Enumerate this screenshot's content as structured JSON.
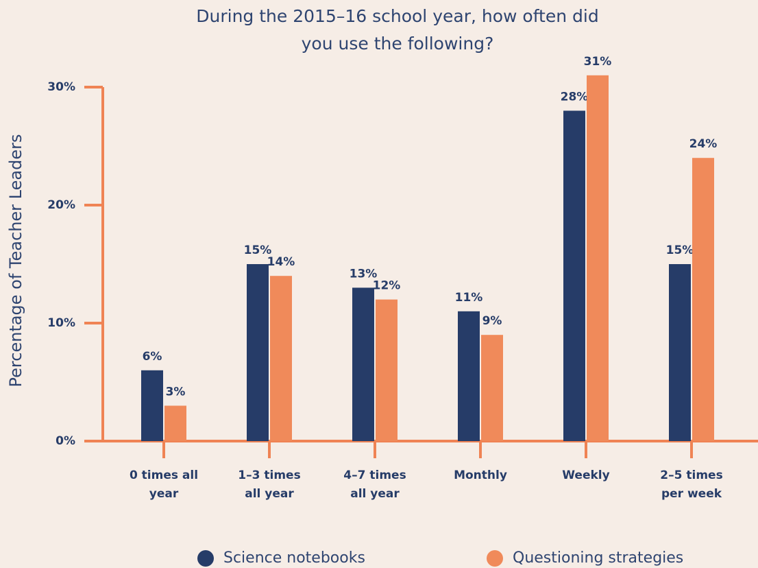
{
  "chart_data": {
    "type": "bar",
    "title": "During the 2015–16 school year, how often did you use the following?",
    "y_label": "Percentage of Teacher Leaders",
    "categories": [
      "0 times all year",
      "1–3 times all year",
      "4–7 times all year",
      "Monthly",
      "Weekly",
      "2–5 times per week"
    ],
    "series": [
      {
        "name": "Science notebooks",
        "color": "#263c68",
        "values": [
          6,
          15,
          13,
          11,
          28,
          15
        ],
        "value_labels": [
          "6%",
          "15%",
          "13%",
          "11%",
          "28%",
          "15%"
        ]
      },
      {
        "name": "Questioning strategies",
        "color": "#f08a5a",
        "values": [
          3,
          14,
          12,
          9,
          31,
          24
        ],
        "value_labels": [
          "3%",
          "14%",
          "12%",
          "9%",
          "31%",
          "24%"
        ]
      }
    ],
    "ylim": [
      0,
      30
    ],
    "yticks": [
      {
        "value": 0,
        "label": "0%"
      },
      {
        "value": 10,
        "label": "10%"
      },
      {
        "value": 20,
        "label": "20%"
      },
      {
        "value": 30,
        "label": "30%"
      }
    ],
    "axis_color": "#ef8354",
    "legend": "bottom"
  }
}
